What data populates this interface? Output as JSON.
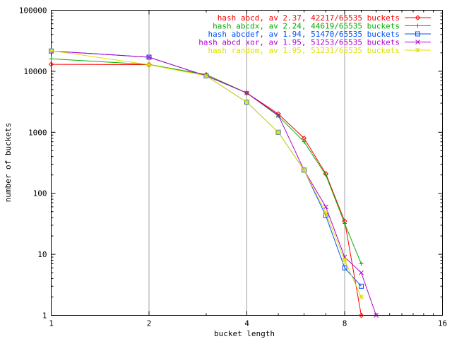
{
  "chart_data": {
    "type": "line",
    "xlabel": "bucket length",
    "ylabel": "number of buckets",
    "x_scale": "log2",
    "y_scale": "log10",
    "xlim": [
      1,
      16
    ],
    "ylim": [
      1,
      100000
    ],
    "x_ticks": [
      "1",
      "2",
      "4",
      "8",
      "16"
    ],
    "y_ticks": [
      "1",
      "10",
      "100",
      "1000",
      "10000",
      "100000"
    ],
    "grid": true,
    "legend_position": "top-right",
    "series": [
      {
        "name": "hash abcd, av 2.37, 42217/65535 buckets",
        "color": "#ff0000",
        "marker": "diamond",
        "x": [
          1,
          2,
          3,
          4,
          5,
          6,
          7,
          8,
          9
        ],
        "y": [
          13000,
          12800,
          8800,
          4400,
          2000,
          800,
          210,
          35,
          1
        ]
      },
      {
        "name": "hash abcdx, av 2.24, 44619/65535 buckets",
        "color": "#00b000",
        "marker": "plus",
        "x": [
          1,
          2,
          3,
          4,
          5,
          6,
          7,
          8,
          9
        ],
        "y": [
          16000,
          12900,
          8800,
          4400,
          1850,
          700,
          200,
          32,
          7
        ]
      },
      {
        "name": "hash abcdef, av 1.94, 51470/65535 buckets",
        "color": "#0050ff",
        "marker": "square",
        "x": [
          1,
          2,
          3,
          4,
          5,
          6,
          7,
          8,
          9
        ],
        "y": [
          21500,
          17000,
          8400,
          3100,
          1000,
          240,
          43,
          6,
          3
        ]
      },
      {
        "name": "hash abcd xor, av 1.95, 51253/65535 buckets",
        "color": "#b000d0",
        "marker": "cross",
        "x": [
          1,
          2,
          3,
          4,
          5,
          6,
          7,
          8,
          9,
          10
        ],
        "y": [
          21500,
          17000,
          8400,
          4400,
          1900,
          240,
          60,
          9,
          5,
          1
        ]
      },
      {
        "name": "hash random, av 1.95, 51231/65535 buckets",
        "color": "#e0e000",
        "marker": "star",
        "x": [
          1,
          2,
          3,
          4,
          5,
          6,
          7,
          8,
          9
        ],
        "y": [
          21800,
          12800,
          8400,
          3100,
          1000,
          240,
          48,
          8,
          2
        ]
      }
    ]
  }
}
